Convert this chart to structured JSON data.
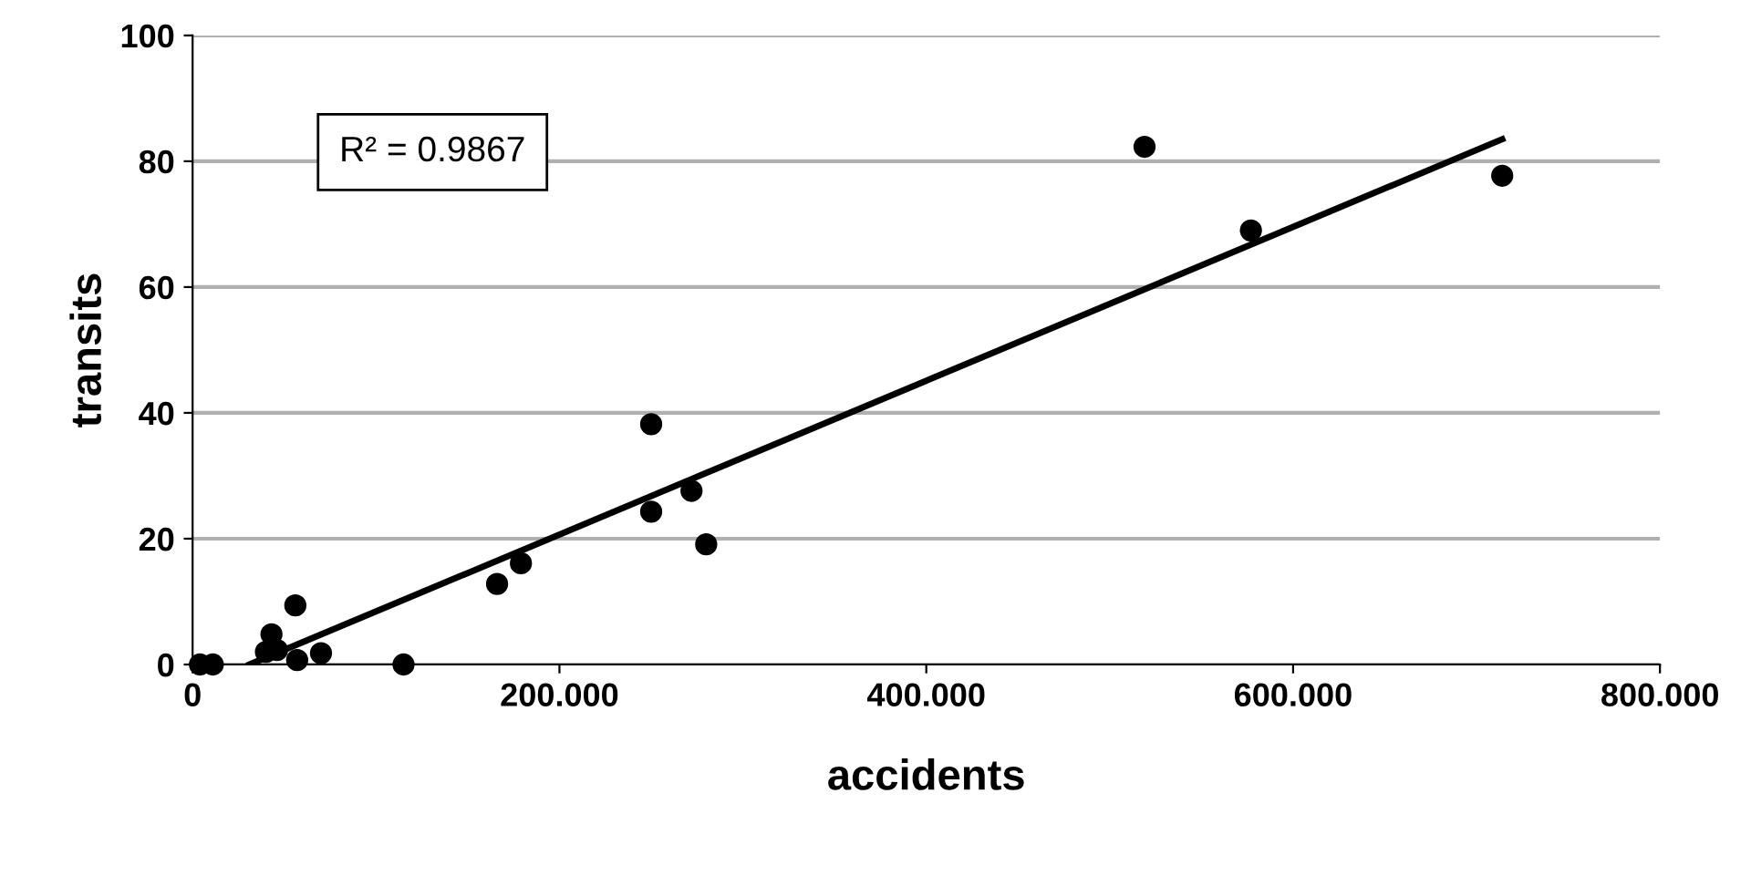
{
  "chart_data": {
    "type": "scatter",
    "xlabel": "accidents",
    "ylabel": "transits",
    "xlim": [
      0,
      800
    ],
    "ylim": [
      0,
      100
    ],
    "xticks": [
      0,
      {
        "value": 200,
        "label": "200.000"
      },
      {
        "value": 400,
        "label": "400.000"
      },
      {
        "value": 600,
        "label": "600.000"
      },
      {
        "value": 800,
        "label": "800.000"
      }
    ],
    "yticks": [
      0,
      20,
      40,
      60,
      80,
      100
    ],
    "grid": "y",
    "marker": "circle",
    "annotations": [
      "R² = 0.9867"
    ],
    "series": [
      {
        "color": "#000000",
        "x": [
          4,
          11,
          40,
          43,
          46,
          56,
          57,
          70,
          115,
          166,
          179,
          250,
          250,
          272,
          280,
          519,
          577,
          714
        ],
        "values": [
          0,
          0,
          2,
          4.8,
          2.3,
          9.4,
          0.7,
          1.8,
          0,
          12.8,
          16.1,
          24.3,
          38.2,
          27.6,
          19.1,
          82.3,
          69,
          77.7
        ]
      },
      {
        "type": "line",
        "color": "#000000",
        "x": [
          31,
          714
        ],
        "values": [
          0,
          83.5
        ],
        "marker": "none",
        "line_style": "solid"
      }
    ]
  }
}
